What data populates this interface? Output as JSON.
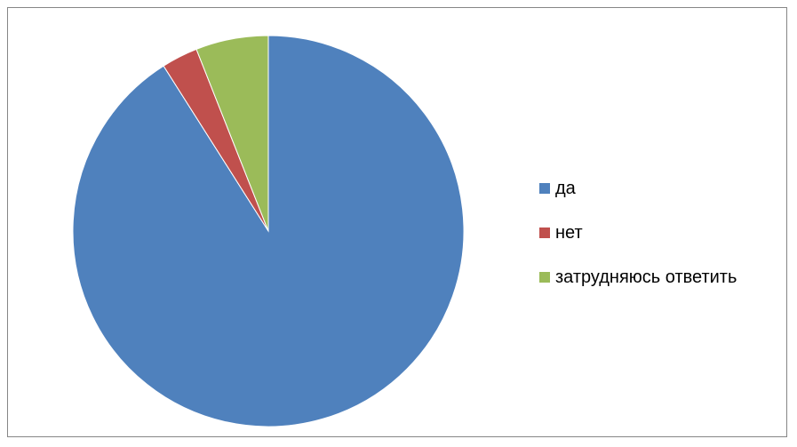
{
  "chart_data": {
    "type": "pie",
    "categories": [
      "да",
      "нет",
      "затрудняюсь ответить"
    ],
    "values": [
      91,
      3,
      6
    ],
    "colors": [
      "#4f81bd",
      "#c0504d",
      "#9bbb59"
    ],
    "legend_position": "right",
    "start_angle": "top",
    "direction": "clockwise"
  }
}
